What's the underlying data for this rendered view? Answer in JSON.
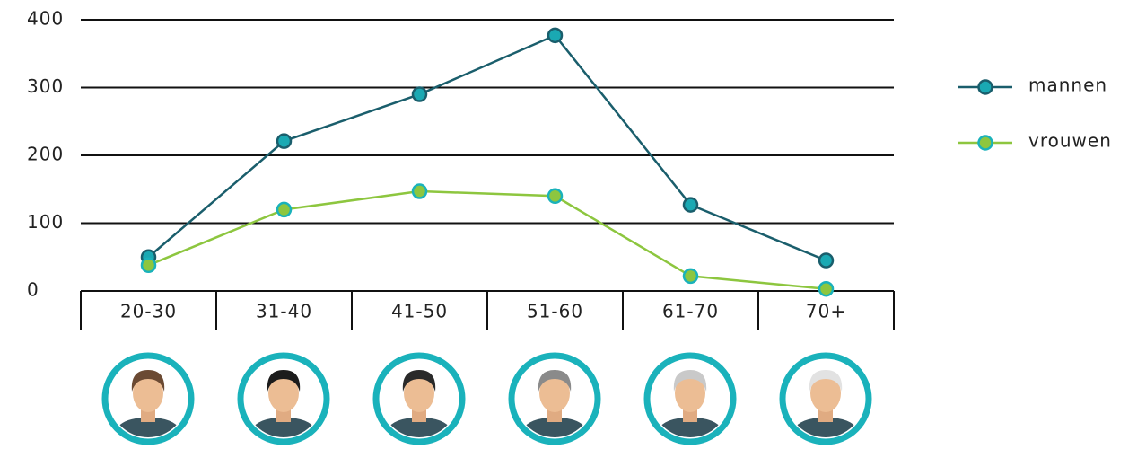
{
  "chart_data": {
    "type": "line",
    "categories": [
      "20-30",
      "31-40",
      "41-50",
      "51-60",
      "61-70",
      "70+"
    ],
    "series": [
      {
        "name": "mannen",
        "color": "#1a5e6c",
        "marker_fill": "#1aa9b3",
        "marker_edge": "#1a5e6c",
        "values": [
          50,
          221,
          290,
          377,
          127,
          45
        ]
      },
      {
        "name": "vrouwen",
        "color": "#8dc63f",
        "marker_fill": "#8dc63f",
        "marker_edge": "#1ab2bb",
        "values": [
          38,
          120,
          147,
          140,
          22,
          3
        ]
      }
    ],
    "ylim": [
      0,
      400
    ],
    "yticks": [
      0,
      100,
      200,
      300,
      400
    ],
    "grid": true,
    "legend": "right"
  }
}
